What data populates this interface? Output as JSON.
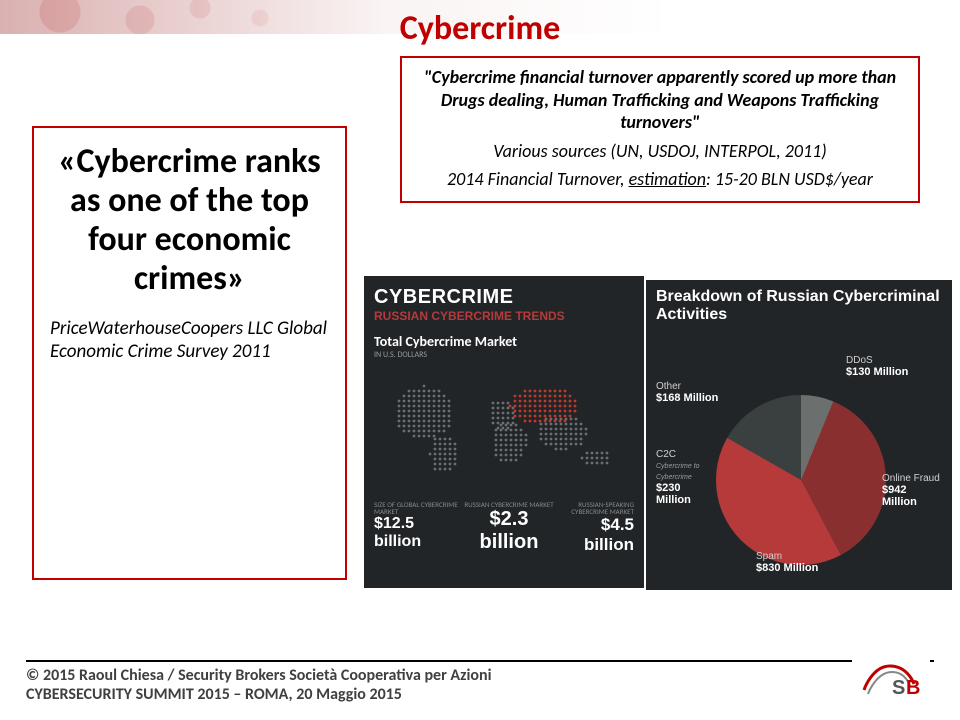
{
  "title": {
    "text": "Cybercrime",
    "color": "#c00000",
    "fontsize": 34
  },
  "left": {
    "quote": "«Cybercrime ranks as one of the top four economic crimes»",
    "source": "PriceWaterhouseCoopers LLC Global Economic Crime Survey 2011",
    "border_color": "#c00000"
  },
  "right": {
    "line1": "\"Cybercrime financial turnover apparently scored up more than Drugs dealing, Human Trafficking and  Weapons Trafficking turnovers\"",
    "line2": "Various sources (UN, USDOJ, INTERPOL, 2011)",
    "line3_prefix": "2014 Financial Turnover, ",
    "line3_underlined": "estimation",
    "line3_suffix": ": 15-20 BLN USD$/year",
    "border_color": "#c00000"
  },
  "trends": {
    "background": "#212528",
    "headline": "CYBERCRIME",
    "subhead": "RUSSIAN CYBERCRIME TRENDS",
    "subhead_color": "#b63a3a",
    "tcm_label": "Total Cybercrime Market",
    "tcm_unit": "IN U.S. DOLLARS",
    "dot_colors": {
      "grey": "#6b6f73",
      "red": "#c0392b"
    },
    "bottom": {
      "c1_label": "SIZE OF GLOBAL CYBERCRIME MARKET",
      "c1_value": "$12.5 billion",
      "c2_label": "RUSSIAN CYBERCRIME MARKET",
      "c2_value": "$2.3 billion",
      "c3_label": "RUSSIAN-SPEAKING CYBERCRIME MARKET",
      "c3_value": "$4.5 billion"
    }
  },
  "breakdown": {
    "background": "#212528",
    "title": "Breakdown of Russian Cybercriminal Activities",
    "type": "pie",
    "slices": [
      {
        "label": "Online Fraud",
        "value": 942,
        "unit": "$",
        "suffix": " Million",
        "color": "#b63a3a"
      },
      {
        "label": "Spam",
        "value": 830,
        "unit": "$",
        "suffix": " Million",
        "color": "#8a2f2f"
      },
      {
        "label": "C2C",
        "sublabel": "Cybercrime to Cybercrime",
        "value": 230,
        "unit": "$",
        "suffix": " Million",
        "color": "#6b706f"
      },
      {
        "label": "Other",
        "value": 168,
        "unit": "$",
        "suffix": " Million",
        "color": "#4e5553"
      },
      {
        "label": "DDoS",
        "value": 130,
        "unit": "$",
        "suffix": " Million",
        "color": "#3a4040"
      }
    ]
  },
  "footer": {
    "copyright": "© 2015 Raoul Chiesa / Security Brokers Società Cooperativa per Azioni",
    "event": "CYBERSECURITY SUMMIT 2015 – ROMA, 20 Maggio 2015",
    "logo_text_1": "S",
    "logo_text_2": "B",
    "logo_color": "#c00000",
    "text_color": "#404040"
  }
}
